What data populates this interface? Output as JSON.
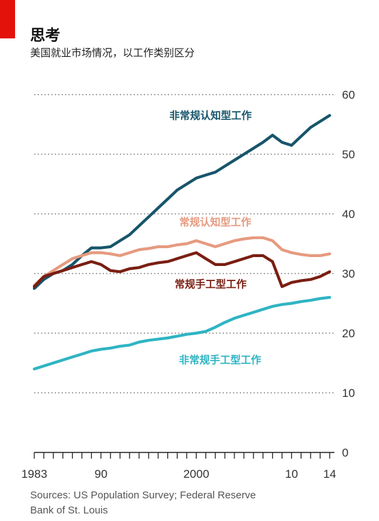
{
  "header": {
    "title": "思考",
    "subtitle": "美国就业市场情况，以工作类别区分"
  },
  "footer": {
    "source_line1": "Sources: US Population Survey; Federal Reserve",
    "source_line2": "Bank of St. Louis"
  },
  "colors": {
    "accent": "#e3120b",
    "nonroutine_cognitive": "#17556b",
    "routine_cognitive": "#e69a7f",
    "routine_manual": "#7a1e12",
    "nonroutine_manual": "#2fb4c3"
  },
  "chart_data": {
    "type": "line",
    "title": "思考",
    "subtitle": "美国就业市场情况，以工作类别区分",
    "ylim": [
      0,
      60
    ],
    "xlim": [
      1983,
      2014.5
    ],
    "yticks": [
      0,
      10,
      20,
      30,
      40,
      50,
      60
    ],
    "xtick_labels": [
      {
        "x": 1983,
        "label": "1983"
      },
      {
        "x": 1990,
        "label": "90"
      },
      {
        "x": 2000,
        "label": "2000"
      },
      {
        "x": 2010,
        "label": "10"
      },
      {
        "x": 2014,
        "label": "14"
      }
    ],
    "grid": true,
    "y_axis_side": "right",
    "series": [
      {
        "name": "非常规认知型工作",
        "color": "#17556b",
        "points": [
          [
            1983,
            27.5
          ],
          [
            1984,
            29
          ],
          [
            1985,
            30
          ],
          [
            1986,
            30.5
          ],
          [
            1987,
            31.5
          ],
          [
            1988,
            33
          ],
          [
            1989,
            34.3
          ],
          [
            1990,
            34.3
          ],
          [
            1991,
            34.5
          ],
          [
            1992,
            35.5
          ],
          [
            1993,
            36.5
          ],
          [
            1994,
            38
          ],
          [
            1995,
            39.5
          ],
          [
            1996,
            41
          ],
          [
            1997,
            42.5
          ],
          [
            1998,
            44
          ],
          [
            1999,
            45
          ],
          [
            2000,
            46
          ],
          [
            2001,
            46.5
          ],
          [
            2002,
            47
          ],
          [
            2003,
            48
          ],
          [
            2004,
            49
          ],
          [
            2005,
            50
          ],
          [
            2006,
            51
          ],
          [
            2007,
            52
          ],
          [
            2008,
            53.2
          ],
          [
            2009,
            52
          ],
          [
            2010,
            51.5
          ],
          [
            2011,
            53
          ],
          [
            2012,
            54.5
          ],
          [
            2013,
            55.5
          ],
          [
            2014,
            56.5
          ]
        ]
      },
      {
        "name": "常规认知型工作",
        "color": "#e69a7f",
        "points": [
          [
            1983,
            28
          ],
          [
            1984,
            29.5
          ],
          [
            1985,
            30.5
          ],
          [
            1986,
            31.5
          ],
          [
            1987,
            32.5
          ],
          [
            1988,
            33
          ],
          [
            1989,
            33.5
          ],
          [
            1990,
            33.5
          ],
          [
            1991,
            33.3
          ],
          [
            1992,
            33
          ],
          [
            1993,
            33.5
          ],
          [
            1994,
            34
          ],
          [
            1995,
            34.2
          ],
          [
            1996,
            34.5
          ],
          [
            1997,
            34.5
          ],
          [
            1998,
            34.8
          ],
          [
            1999,
            35
          ],
          [
            2000,
            35.5
          ],
          [
            2001,
            35
          ],
          [
            2002,
            34.5
          ],
          [
            2003,
            35
          ],
          [
            2004,
            35.5
          ],
          [
            2005,
            35.8
          ],
          [
            2006,
            36
          ],
          [
            2007,
            36
          ],
          [
            2008,
            35.5
          ],
          [
            2009,
            34
          ],
          [
            2010,
            33.5
          ],
          [
            2011,
            33.2
          ],
          [
            2012,
            33
          ],
          [
            2013,
            33
          ],
          [
            2014,
            33.3
          ]
        ]
      },
      {
        "name": "常规手工型工作",
        "color": "#7a1e12",
        "points": [
          [
            1983,
            27.8
          ],
          [
            1984,
            29.5
          ],
          [
            1985,
            30
          ],
          [
            1986,
            30.5
          ],
          [
            1987,
            31
          ],
          [
            1988,
            31.5
          ],
          [
            1989,
            32
          ],
          [
            1990,
            31.5
          ],
          [
            1991,
            30.5
          ],
          [
            1992,
            30.3
          ],
          [
            1993,
            30.8
          ],
          [
            1994,
            31
          ],
          [
            1995,
            31.5
          ],
          [
            1996,
            31.8
          ],
          [
            1997,
            32
          ],
          [
            1998,
            32.5
          ],
          [
            1999,
            33
          ],
          [
            2000,
            33.5
          ],
          [
            2001,
            32.5
          ],
          [
            2002,
            31.5
          ],
          [
            2003,
            31.5
          ],
          [
            2004,
            32
          ],
          [
            2005,
            32.5
          ],
          [
            2006,
            33
          ],
          [
            2007,
            33
          ],
          [
            2008,
            32
          ],
          [
            2009,
            27.8
          ],
          [
            2010,
            28.5
          ],
          [
            2011,
            28.8
          ],
          [
            2012,
            29
          ],
          [
            2013,
            29.5
          ],
          [
            2014,
            30.3
          ]
        ]
      },
      {
        "name": "非常规手工型工作",
        "color": "#2fb4c3",
        "points": [
          [
            1983,
            14
          ],
          [
            1984,
            14.5
          ],
          [
            1985,
            15
          ],
          [
            1986,
            15.5
          ],
          [
            1987,
            16
          ],
          [
            1988,
            16.5
          ],
          [
            1989,
            17
          ],
          [
            1990,
            17.3
          ],
          [
            1991,
            17.5
          ],
          [
            1992,
            17.8
          ],
          [
            1993,
            18
          ],
          [
            1994,
            18.5
          ],
          [
            1995,
            18.8
          ],
          [
            1996,
            19
          ],
          [
            1997,
            19.2
          ],
          [
            1998,
            19.5
          ],
          [
            1999,
            19.8
          ],
          [
            2000,
            20
          ],
          [
            2001,
            20.3
          ],
          [
            2002,
            21
          ],
          [
            2003,
            21.8
          ],
          [
            2004,
            22.5
          ],
          [
            2005,
            23
          ],
          [
            2006,
            23.5
          ],
          [
            2007,
            24
          ],
          [
            2008,
            24.5
          ],
          [
            2009,
            24.8
          ],
          [
            2010,
            25
          ],
          [
            2011,
            25.3
          ],
          [
            2012,
            25.5
          ],
          [
            2013,
            25.8
          ],
          [
            2014,
            26
          ]
        ]
      }
    ],
    "labels": [
      {
        "series": 0,
        "x": 2001.5,
        "y": 56.5
      },
      {
        "series": 1,
        "x": 2002,
        "y": 38.6
      },
      {
        "series": 2,
        "x": 2001.5,
        "y": 28.2
      },
      {
        "series": 3,
        "x": 2002.5,
        "y": 15.5
      }
    ]
  }
}
